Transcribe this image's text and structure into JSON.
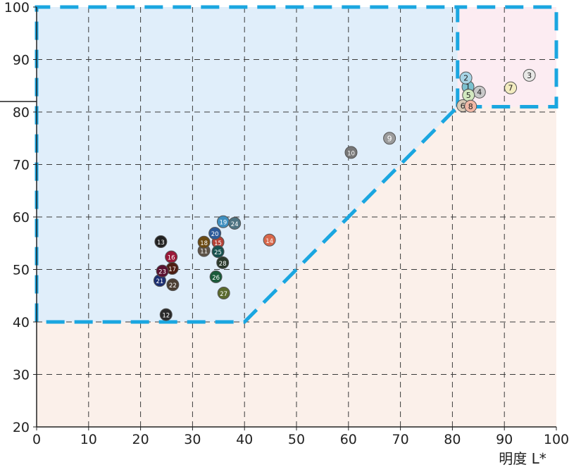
{
  "chart_data": {
    "type": "scatter",
    "xlabel": "明度 L*",
    "xlim": [
      0,
      100
    ],
    "ylim": [
      20,
      100
    ],
    "x_ticks": [
      "0",
      "10",
      "20",
      "30",
      "40",
      "50",
      "60",
      "70",
      "80",
      "90",
      "100"
    ],
    "y_ticks": [
      "20",
      "30",
      "40",
      "50",
      "60",
      "70",
      "80",
      "90",
      "100"
    ],
    "grid": true,
    "regions": [
      {
        "id": "blue-zone",
        "fill": "#e0eefa",
        "polygon": [
          [
            0,
            40
          ],
          [
            40,
            40
          ],
          [
            81,
            81
          ],
          [
            81,
            100
          ],
          [
            0,
            100
          ]
        ]
      },
      {
        "id": "pink-zone",
        "fill": "#fcecf2",
        "polygon": [
          [
            81,
            81
          ],
          [
            100,
            81
          ],
          [
            100,
            100
          ],
          [
            81,
            100
          ]
        ]
      }
    ],
    "boundary": {
      "color": "#1aa6e0",
      "points": [
        [
          81,
          81
        ],
        [
          81,
          100
        ],
        [
          0,
          100
        ],
        [
          0,
          40
        ],
        [
          40,
          40
        ],
        [
          81,
          81
        ],
        [
          100,
          81
        ],
        [
          100,
          100
        ],
        [
          81,
          100
        ]
      ]
    },
    "points": [
      {
        "label": "1",
        "x": 83.0,
        "y": 84.8,
        "color": "#7cc1cf",
        "text": "#222222"
      },
      {
        "label": "2",
        "x": 82.6,
        "y": 86.5,
        "color": "#a8d5e6",
        "text": "#222222"
      },
      {
        "label": "3",
        "x": 94.8,
        "y": 87.0,
        "color": "#e8e8e6",
        "text": "#222222"
      },
      {
        "label": "4",
        "x": 85.2,
        "y": 83.8,
        "color": "#c9c9c9",
        "text": "#222222"
      },
      {
        "label": "5",
        "x": 83.1,
        "y": 83.2,
        "color": "#d3e8c0",
        "text": "#222222"
      },
      {
        "label": "6",
        "x": 82.0,
        "y": 81.2,
        "color": "#d8c9b6",
        "text": "#222222"
      },
      {
        "label": "7",
        "x": 91.2,
        "y": 84.6,
        "color": "#f3ecc0",
        "text": "#222222"
      },
      {
        "label": "8",
        "x": 83.5,
        "y": 81.1,
        "color": "#f1b7a5",
        "text": "#222222"
      },
      {
        "label": "9",
        "x": 67.9,
        "y": 75.0,
        "color": "#9b9b9b",
        "text": "#ffffff"
      },
      {
        "label": "10",
        "x": 60.5,
        "y": 72.3,
        "color": "#777777",
        "text": "#ffffff"
      },
      {
        "label": "11",
        "x": 32.2,
        "y": 53.6,
        "color": "#5d5348",
        "text": "#ffffff"
      },
      {
        "label": "12",
        "x": 24.9,
        "y": 41.4,
        "color": "#2a2a2a",
        "text": "#ffffff"
      },
      {
        "label": "13",
        "x": 23.9,
        "y": 55.3,
        "color": "#222222",
        "text": "#ffffff"
      },
      {
        "label": "14",
        "x": 44.8,
        "y": 55.6,
        "color": "#d8674a",
        "text": "#ffffff"
      },
      {
        "label": "15",
        "x": 34.9,
        "y": 55.2,
        "color": "#b54036",
        "text": "#ffffff"
      },
      {
        "label": "16",
        "x": 25.9,
        "y": 52.4,
        "color": "#9a1838",
        "text": "#ffffff"
      },
      {
        "label": "17",
        "x": 26.1,
        "y": 50.2,
        "color": "#4e1e12",
        "text": "#ffffff"
      },
      {
        "label": "18",
        "x": 32.2,
        "y": 55.2,
        "color": "#6b4a12",
        "text": "#ffffff"
      },
      {
        "label": "19",
        "x": 35.9,
        "y": 59.1,
        "color": "#3f8fbf",
        "text": "#ffffff"
      },
      {
        "label": "20",
        "x": 34.3,
        "y": 56.9,
        "color": "#2b5a9a",
        "text": "#ffffff"
      },
      {
        "label": "21",
        "x": 23.7,
        "y": 47.9,
        "color": "#1c2f72",
        "text": "#ffffff"
      },
      {
        "label": "22",
        "x": 26.2,
        "y": 47.1,
        "color": "#4c3f33",
        "text": "#ffffff"
      },
      {
        "label": "23",
        "x": 24.2,
        "y": 49.7,
        "color": "#5a1230",
        "text": "#ffffff"
      },
      {
        "label": "24",
        "x": 38.1,
        "y": 58.8,
        "color": "#4e7482",
        "text": "#ffffff"
      },
      {
        "label": "25",
        "x": 34.9,
        "y": 53.4,
        "color": "#17524f",
        "text": "#ffffff"
      },
      {
        "label": "26",
        "x": 34.5,
        "y": 48.6,
        "color": "#1a5a3a",
        "text": "#ffffff"
      },
      {
        "label": "27",
        "x": 36.0,
        "y": 45.5,
        "color": "#5a6a2e",
        "text": "#ffffff"
      },
      {
        "label": "28",
        "x": 35.8,
        "y": 51.3,
        "color": "#2b3a2c",
        "text": "#ffffff"
      }
    ]
  }
}
